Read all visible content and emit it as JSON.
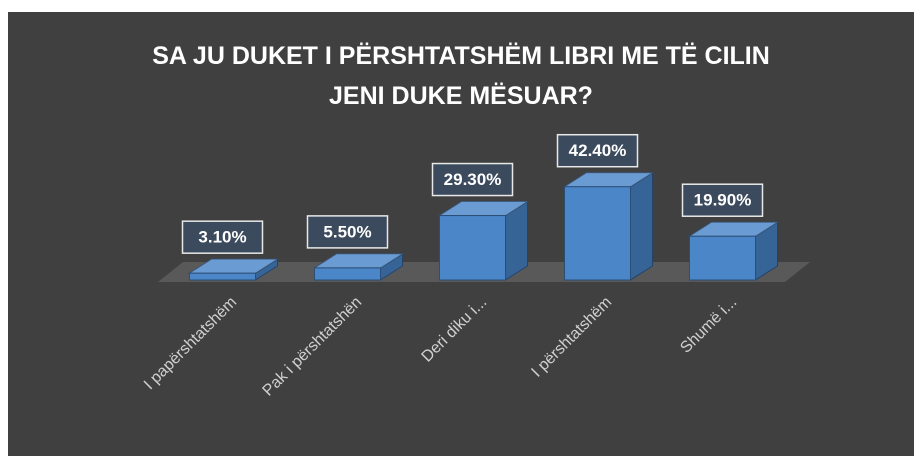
{
  "chart_data": {
    "type": "bar3d",
    "title": "SA JU DUKET I PËRSHTATSHËM LIBRI ME TË CILIN JENI DUKE MËSUAR?",
    "categories": [
      "I papërshtatshëm",
      "Pak i përshtatshën",
      "Deri diku i...",
      "I përshtatshëm",
      "Shumë i..."
    ],
    "values": [
      3.1,
      5.5,
      29.3,
      42.4,
      19.9
    ],
    "value_labels": [
      "3.10%",
      "5.50%",
      "29.30%",
      "42.40%",
      "19.90%"
    ],
    "color": "#4a86c8",
    "ylim": [
      0,
      50
    ]
  }
}
